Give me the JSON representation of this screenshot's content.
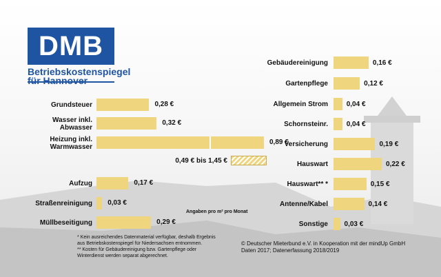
{
  "logo": {
    "abbr": "DMB",
    "line1": "Betriebskostenspiegel",
    "line2": "für Hannover",
    "color": "#1f54a3"
  },
  "chart_data": [
    {
      "type": "bar",
      "orientation": "horizontal",
      "unit": "€ pro m² pro Monat",
      "categories": [
        "Grundsteuer",
        "Wasser inkl. Abwasser",
        "Heizung inkl. Warmwasser",
        "Aufzug",
        "Straßenreinigung",
        "Müllbeseitigung"
      ],
      "values": [
        0.28,
        0.32,
        0.89,
        0.17,
        0.03,
        0.29
      ],
      "value_labels": [
        "0,28 €",
        "0,32 €",
        "0,89 €",
        "0,17 €",
        "0,03 €",
        "0,29 €"
      ],
      "range_label": "0,49 € bis 1,45 €",
      "range": [
        0.49,
        1.45
      ],
      "bar_color": "#eed57e"
    },
    {
      "type": "bar",
      "orientation": "horizontal",
      "unit": "€ pro m² pro Monat",
      "categories": [
        "Gebäudereinigung",
        "Gartenpflege",
        "Allgemein Strom",
        "Schornsteinr.",
        "Versicherung",
        "Hauswart",
        "Hauswart** *",
        "Antenne/Kabel",
        "Sonstige"
      ],
      "values": [
        0.16,
        0.12,
        0.04,
        0.04,
        0.19,
        0.22,
        0.15,
        0.14,
        0.03
      ],
      "value_labels": [
        "0,16 €",
        "0,12 €",
        "0,04 €",
        "0,04 €",
        "0,19 €",
        "0,22 €",
        "0,15 €",
        "0,14 €",
        "0,03 €"
      ],
      "bar_color": "#eed57e"
    }
  ],
  "left_labels": [
    [
      "Grundsteuer"
    ],
    [
      "Wasser inkl.",
      "Abwasser"
    ],
    [
      "Heizung inkl.",
      "Warmwasser"
    ],
    [
      "Aufzug"
    ],
    [
      "Straßenreinigung"
    ],
    [
      "Müllbeseitigung"
    ]
  ],
  "unit_note": "Angaben pro m² pro Monat",
  "footnotes": [
    "*  Kein ausreichendes Datenmaterial verfügbar,  deshalb Ergebnis",
    "   aus Betriebskostenspiegel für Niedersachsen entnommen.",
    "** Kosten für Gebäudereinigung bzw. Gartenpflege oder",
    "   Winterdienst  werden separat abgerechnet."
  ],
  "credit": [
    "© Deutscher Mieterbund e.V. in Kooperation mit der mindUp GmbH",
    "Daten 2017; Datenerfassung 2018/2019"
  ]
}
